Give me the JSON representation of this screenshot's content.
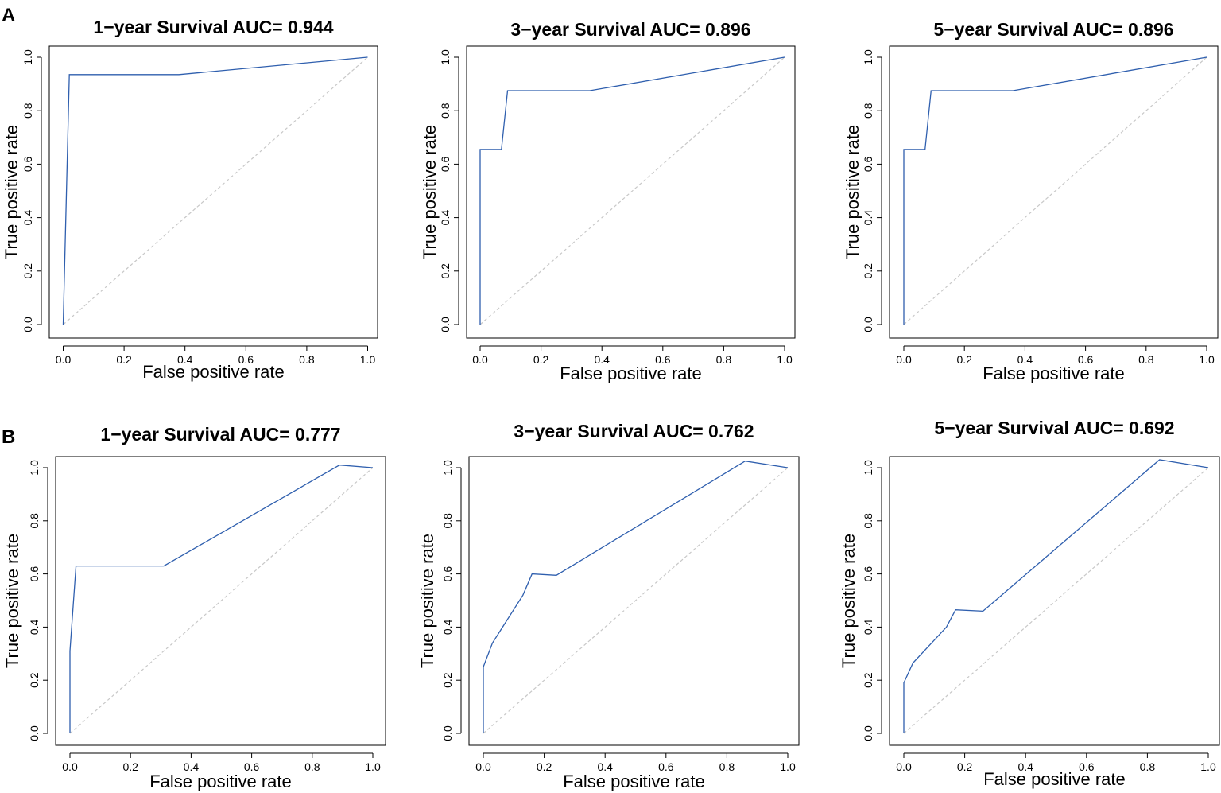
{
  "figure": {
    "panels": [
      {
        "label": "A"
      },
      {
        "label": "B"
      }
    ]
  },
  "chart_data": [
    {
      "type": "line",
      "panel": "A",
      "chart_type": "roc",
      "title": "1−year Survival AUC= 0.944",
      "xlabel": "False positive rate",
      "ylabel": "True positive rate",
      "xlim": [
        0,
        1
      ],
      "ylim": [
        0,
        1
      ],
      "ticks": [
        "0.0",
        "0.2",
        "0.4",
        "0.6",
        "0.8",
        "1.0"
      ],
      "series": [
        {
          "name": "ROC",
          "color": "#2f5fae",
          "x": [
            0,
            0.02,
            0.38,
            1.0
          ],
          "y": [
            0,
            0.935,
            0.935,
            1.0
          ]
        },
        {
          "name": "reference",
          "color": "#c8c8c8",
          "x": [
            0,
            1
          ],
          "y": [
            0,
            1
          ]
        }
      ]
    },
    {
      "type": "line",
      "panel": "A",
      "chart_type": "roc",
      "title": "3−year Survival AUC= 0.896",
      "xlabel": "False positive rate",
      "ylabel": "True positive rate",
      "xlim": [
        0,
        1
      ],
      "ylim": [
        0,
        1
      ],
      "ticks": [
        "0.0",
        "0.2",
        "0.4",
        "0.6",
        "0.8",
        "1.0"
      ],
      "series": [
        {
          "name": "ROC",
          "color": "#2f5fae",
          "x": [
            0,
            0,
            0.07,
            0.09,
            0.36,
            1.0
          ],
          "y": [
            0,
            0.655,
            0.655,
            0.875,
            0.875,
            1.0
          ]
        },
        {
          "name": "reference",
          "color": "#c8c8c8",
          "x": [
            0,
            1
          ],
          "y": [
            0,
            1
          ]
        }
      ]
    },
    {
      "type": "line",
      "panel": "A",
      "chart_type": "roc",
      "title": "5−year Survival AUC= 0.896",
      "xlabel": "False positive rate",
      "ylabel": "True positive rate",
      "xlim": [
        0,
        1
      ],
      "ylim": [
        0,
        1
      ],
      "ticks": [
        "0.0",
        "0.2",
        "0.4",
        "0.6",
        "0.8",
        "1.0"
      ],
      "series": [
        {
          "name": "ROC",
          "color": "#2f5fae",
          "x": [
            0,
            0,
            0.07,
            0.09,
            0.36,
            1.0
          ],
          "y": [
            0,
            0.655,
            0.655,
            0.875,
            0.875,
            1.0
          ]
        },
        {
          "name": "reference",
          "color": "#c8c8c8",
          "x": [
            0,
            1
          ],
          "y": [
            0,
            1
          ]
        }
      ]
    },
    {
      "type": "line",
      "panel": "B",
      "chart_type": "roc",
      "title": "1−year Survival AUC= 0.777",
      "xlabel": "False positive rate",
      "ylabel": "True positive rate",
      "xlim": [
        0,
        1
      ],
      "ylim": [
        0,
        1
      ],
      "ticks": [
        "0.0",
        "0.2",
        "0.4",
        "0.6",
        "0.8",
        "1.0"
      ],
      "series": [
        {
          "name": "ROC",
          "color": "#2f5fae",
          "x": [
            0,
            0,
            0.02,
            0.31,
            0.89,
            1.0
          ],
          "y": [
            0,
            0.31,
            0.63,
            0.63,
            1.01,
            1.0
          ]
        },
        {
          "name": "reference",
          "color": "#c8c8c8",
          "x": [
            0,
            1
          ],
          "y": [
            0,
            1
          ]
        }
      ]
    },
    {
      "type": "line",
      "panel": "B",
      "chart_type": "roc",
      "title": "3−year Survival AUC= 0.762",
      "xlabel": "False positive rate",
      "ylabel": "True positive rate",
      "xlim": [
        0,
        1
      ],
      "ylim": [
        0,
        1
      ],
      "ticks": [
        "0.0",
        "0.2",
        "0.4",
        "0.6",
        "0.8",
        "1.0"
      ],
      "series": [
        {
          "name": "ROC",
          "color": "#2f5fae",
          "x": [
            0,
            0,
            0.03,
            0.13,
            0.16,
            0.24,
            0.86,
            1.0
          ],
          "y": [
            0,
            0.25,
            0.34,
            0.52,
            0.6,
            0.595,
            1.025,
            1.0
          ]
        },
        {
          "name": "reference",
          "color": "#c8c8c8",
          "x": [
            0,
            1
          ],
          "y": [
            0,
            1
          ]
        }
      ]
    },
    {
      "type": "line",
      "panel": "B",
      "chart_type": "roc",
      "title": "5−year Survival AUC= 0.692",
      "xlabel": "False positive rate",
      "ylabel": "True positive rate",
      "xlim": [
        0,
        1
      ],
      "ylim": [
        0,
        1
      ],
      "ticks": [
        "0.0",
        "0.2",
        "0.4",
        "0.6",
        "0.8",
        "1.0"
      ],
      "series": [
        {
          "name": "ROC",
          "color": "#2f5fae",
          "x": [
            0,
            0,
            0.03,
            0.14,
            0.17,
            0.26,
            0.84,
            1.0
          ],
          "y": [
            0,
            0.19,
            0.265,
            0.4,
            0.465,
            0.46,
            1.03,
            1.0
          ]
        },
        {
          "name": "reference",
          "color": "#c8c8c8",
          "x": [
            0,
            1
          ],
          "y": [
            0,
            1
          ]
        }
      ]
    }
  ]
}
